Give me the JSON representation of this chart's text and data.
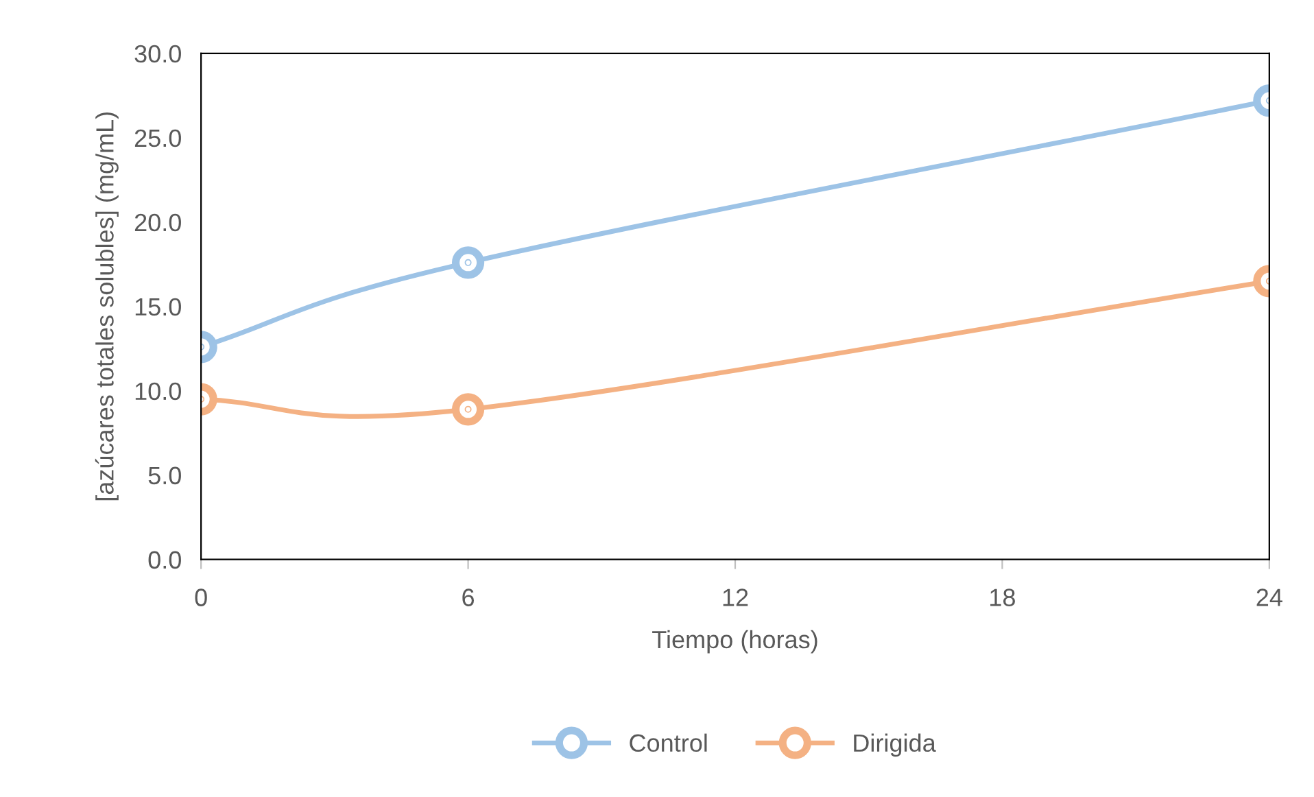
{
  "chart_data": {
    "type": "line",
    "xlabel": "Tiempo (horas)",
    "ylabel": "[azúcares totales solubles] (mg/mL)",
    "x": [
      0,
      6,
      24
    ],
    "series": [
      {
        "name": "Control",
        "color": "#9dc3e6",
        "values": [
          12.6,
          17.6,
          27.2
        ]
      },
      {
        "name": "Dirigida",
        "color": "#f4b183",
        "values": [
          9.5,
          8.9,
          16.5
        ]
      }
    ],
    "xlim": [
      0,
      24
    ],
    "xticks": [
      0,
      6,
      12,
      18,
      24
    ],
    "ylim": [
      0,
      30
    ],
    "yticks": [
      {
        "value": 0,
        "label": "0.0"
      },
      {
        "value": 5,
        "label": "5.0"
      },
      {
        "value": 10,
        "label": "10.0"
      },
      {
        "value": 15,
        "label": "15.0"
      },
      {
        "value": 20,
        "label": "20.0"
      },
      {
        "value": 25,
        "label": "25.0"
      },
      {
        "value": 30,
        "label": "30.0"
      }
    ],
    "grid": false,
    "legend": "bottom",
    "marker": "circle",
    "line_style": "solid"
  }
}
